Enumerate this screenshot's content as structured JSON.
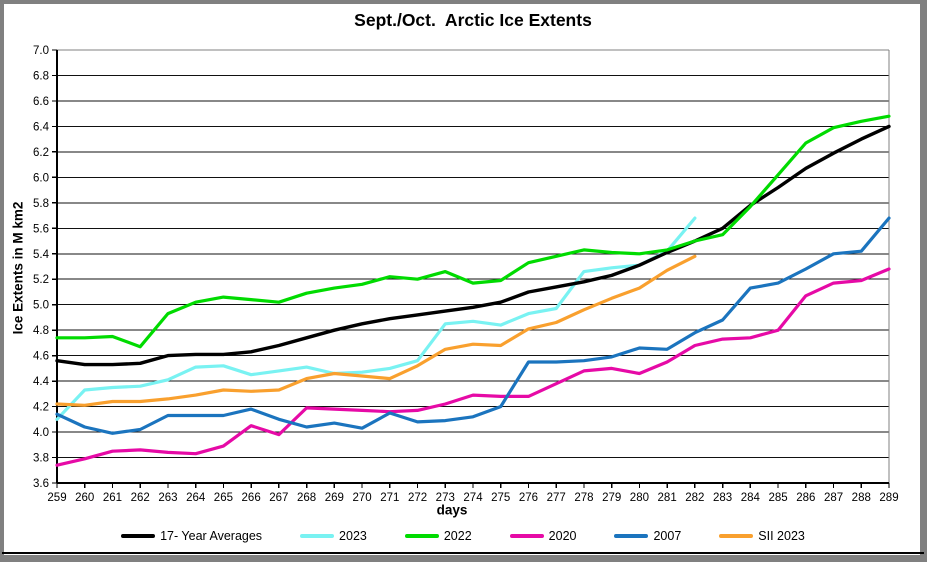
{
  "window": {
    "background": "#ffffff",
    "frame_color": "#808080",
    "bottom_rule_color": "#000000"
  },
  "axes": {
    "gridline_color": "#111111",
    "axis_line_color": "#000000",
    "plot_border_color": "#808080",
    "tick_label_color": "#000000",
    "y_tick_labels": [
      "7.0",
      "6.8",
      "6.6",
      "6.4",
      "6.2",
      "6.0",
      "5.8",
      "5.6",
      "5.4",
      "5.2",
      "5.0",
      "4.8",
      "4.6",
      "4.4",
      "4.2",
      "4.0",
      "3.8",
      "3.6"
    ],
    "x_tick_labels": [
      "259",
      "260",
      "261",
      "262",
      "263",
      "264",
      "265",
      "266",
      "267",
      "268",
      "269",
      "270",
      "271",
      "272",
      "273",
      "274",
      "275",
      "276",
      "277",
      "278",
      "279",
      "280",
      "281",
      "282",
      "283",
      "284",
      "285",
      "286",
      "287",
      "288",
      "289"
    ]
  },
  "chart_data": {
    "type": "line",
    "title": "Sept./Oct.  Arctic Ice Extents",
    "xlabel": "days",
    "ylabel": "Ice Extents in M km2",
    "x": [
      259,
      260,
      261,
      262,
      263,
      264,
      265,
      266,
      267,
      268,
      269,
      270,
      271,
      272,
      273,
      274,
      275,
      276,
      277,
      278,
      279,
      280,
      281,
      282,
      283,
      284,
      285,
      286,
      287,
      288,
      289
    ],
    "ylim": [
      3.6,
      7.0
    ],
    "y_tick_step": 0.2,
    "grid": "horizontal",
    "legend_position": "bottom",
    "series": [
      {
        "name": "17- Year Averages",
        "color": "#000000",
        "values": [
          4.56,
          4.53,
          4.53,
          4.54,
          4.6,
          4.61,
          4.61,
          4.63,
          4.68,
          4.74,
          4.8,
          4.85,
          4.89,
          4.92,
          4.95,
          4.98,
          5.02,
          5.1,
          5.14,
          5.18,
          5.23,
          5.31,
          5.41,
          5.5,
          5.6,
          5.78,
          5.92,
          6.07,
          6.19,
          6.3,
          6.4
        ]
      },
      {
        "name": "2023",
        "color": "#79F2F2",
        "values": [
          4.1,
          4.33,
          4.35,
          4.36,
          4.41,
          4.51,
          4.52,
          4.45,
          4.48,
          4.51,
          4.46,
          4.47,
          4.5,
          4.56,
          4.85,
          4.87,
          4.84,
          4.93,
          4.97,
          5.26,
          5.29,
          5.31,
          5.42,
          5.68
        ]
      },
      {
        "name": "2022",
        "color": "#00DB00",
        "values": [
          4.74,
          4.74,
          4.75,
          4.67,
          4.93,
          5.02,
          5.06,
          5.04,
          5.02,
          5.09,
          5.13,
          5.16,
          5.22,
          5.2,
          5.26,
          5.17,
          5.19,
          5.33,
          5.38,
          5.43,
          5.41,
          5.4,
          5.43,
          5.5,
          5.55,
          5.77,
          6.02,
          6.27,
          6.39,
          6.44,
          6.48
        ]
      },
      {
        "name": "2020",
        "color": "#E60AA6",
        "values": [
          3.74,
          3.79,
          3.85,
          3.86,
          3.84,
          3.83,
          3.89,
          4.05,
          3.98,
          4.19,
          4.18,
          4.17,
          4.16,
          4.17,
          4.22,
          4.29,
          4.28,
          4.28,
          4.38,
          4.48,
          4.5,
          4.46,
          4.55,
          4.68,
          4.73,
          4.74,
          4.8,
          5.07,
          5.17,
          5.19,
          5.28
        ]
      },
      {
        "name": "2007",
        "color": "#1B74BE",
        "values": [
          4.14,
          4.04,
          3.99,
          4.02,
          4.13,
          4.13,
          4.13,
          4.18,
          4.1,
          4.04,
          4.07,
          4.03,
          4.15,
          4.08,
          4.09,
          4.12,
          4.2,
          4.55,
          4.55,
          4.56,
          4.59,
          4.66,
          4.65,
          4.78,
          4.88,
          5.13,
          5.17,
          5.28,
          5.4,
          5.42,
          5.68
        ]
      },
      {
        "name": "SII 2023",
        "color": "#F9A02E",
        "values": [
          4.22,
          4.21,
          4.24,
          4.24,
          4.26,
          4.29,
          4.33,
          4.32,
          4.33,
          4.42,
          4.46,
          4.44,
          4.42,
          4.52,
          4.65,
          4.69,
          4.68,
          4.81,
          4.86,
          4.96,
          5.05,
          5.13,
          5.27,
          5.38
        ]
      }
    ],
    "draw_order": [
      "2023",
      "SII 2023",
      "2020",
      "2007",
      "17- Year Averages",
      "2022"
    ]
  }
}
